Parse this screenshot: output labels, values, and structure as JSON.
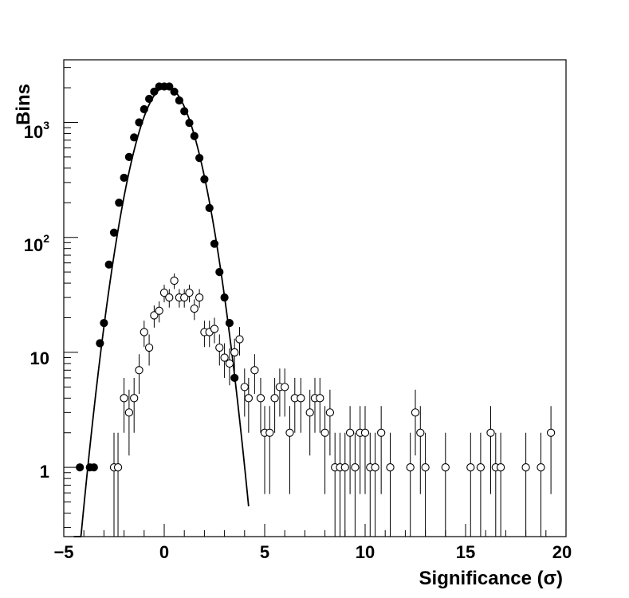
{
  "chart_data": {
    "type": "scatter",
    "xlabel": "Significance (σ)",
    "ylabel": "Bins",
    "xlim": [
      -5,
      20
    ],
    "ylim": [
      0.25,
      3500
    ],
    "yscale": "log",
    "x_ticks": [
      "−5",
      "0",
      "5",
      "10",
      "15",
      "20"
    ],
    "y_ticks": [
      {
        "base": "1",
        "exp": ""
      },
      {
        "base": "10",
        "exp": ""
      },
      {
        "base": "10",
        "exp": "2"
      },
      {
        "base": "10",
        "exp": "3"
      }
    ],
    "grid": false,
    "legend": "none",
    "series": [
      {
        "marker": "filled-circle",
        "x": [
          -4.2,
          -3.7,
          -3.5,
          -3.2,
          -3.0,
          -2.75,
          -2.5,
          -2.25,
          -2.0,
          -1.75,
          -1.5,
          -1.25,
          -1.0,
          -0.75,
          -0.5,
          -0.25,
          0.0,
          0.25,
          0.5,
          0.75,
          1.0,
          1.25,
          1.5,
          1.75,
          2.0,
          2.25,
          2.5,
          2.75,
          3.0,
          3.25,
          3.5
        ],
        "y": [
          1,
          1,
          1,
          12,
          18,
          58,
          110,
          200,
          330,
          500,
          740,
          1000,
          1300,
          1600,
          1850,
          2050,
          2050,
          2050,
          1850,
          1550,
          1250,
          990,
          760,
          490,
          320,
          180,
          88,
          50,
          30,
          18,
          6
        ],
        "err": false
      },
      {
        "marker": "open-circle",
        "x": [
          -2.5,
          -2.3,
          -2.0,
          -1.75,
          -1.5,
          -1.25,
          -1.0,
          -0.75,
          -0.5,
          -0.25,
          0.0,
          0.25,
          0.5,
          0.75,
          1.0,
          1.25,
          1.5,
          1.75,
          2.0,
          2.25,
          2.5,
          2.75,
          3.0,
          3.25,
          3.5,
          3.75,
          4.0,
          4.2,
          4.5,
          4.8,
          5.0,
          5.25,
          5.5,
          5.75,
          6.0,
          6.25,
          6.5,
          6.8,
          7.25,
          7.5,
          7.75,
          8.0,
          8.25,
          8.5,
          8.75,
          9.0,
          9.25,
          9.5,
          9.75,
          10.0,
          10.25,
          10.5,
          10.8,
          11.25,
          12.25,
          12.5,
          12.75,
          13.0,
          14.0,
          15.25,
          15.75,
          16.25,
          16.5,
          16.75,
          18.0,
          18.75,
          19.25
        ],
        "y": [
          1,
          1,
          4,
          3,
          4,
          7,
          15,
          11,
          21,
          23,
          33,
          30,
          42,
          30,
          30,
          33,
          24,
          30,
          15,
          15,
          16,
          11,
          9,
          8,
          10,
          13,
          5,
          4,
          7,
          4,
          2,
          2,
          4,
          5,
          5,
          2,
          4,
          4,
          3,
          4,
          4,
          2,
          3,
          1,
          1,
          1,
          2,
          1,
          2,
          2,
          1,
          1,
          2,
          1,
          1,
          3,
          2,
          1,
          1,
          1,
          1,
          2,
          1,
          1,
          1,
          1,
          2
        ],
        "err": true
      }
    ],
    "fit": {
      "type": "gaussian",
      "amplitude": 2050,
      "mean": 0.1,
      "sigma": 1.0,
      "x_range": [
        -4.5,
        4.2
      ]
    }
  }
}
